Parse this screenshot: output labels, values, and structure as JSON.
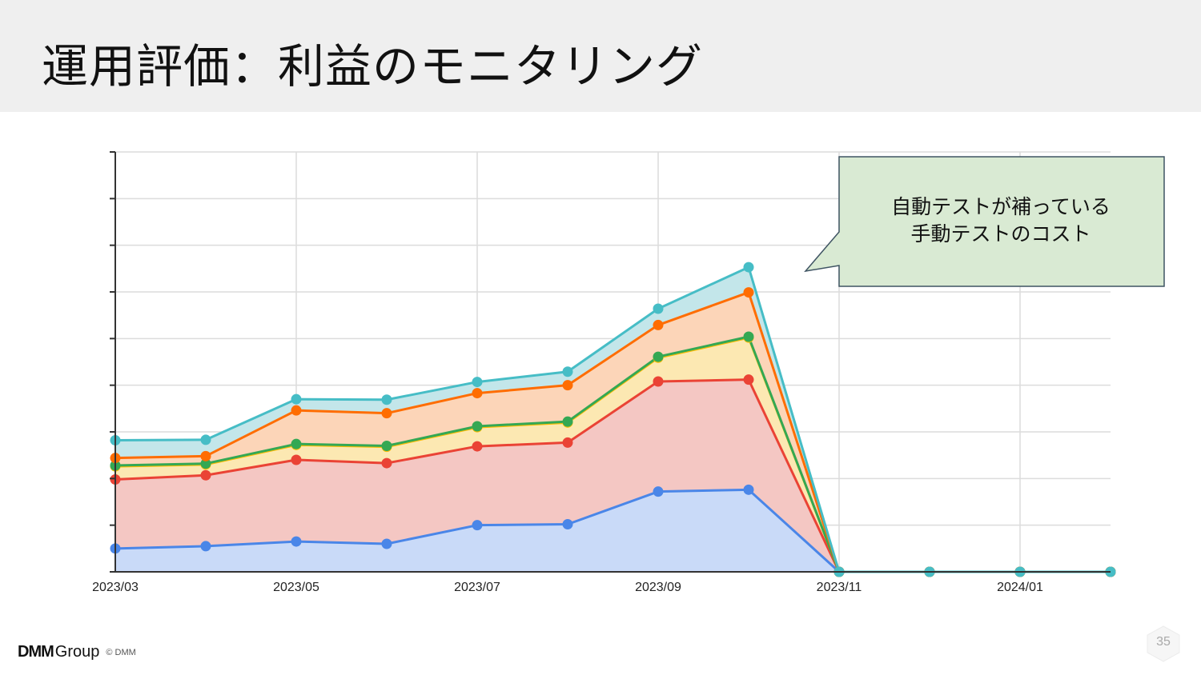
{
  "slide": {
    "title": "運用評価：利益のモニタリング",
    "page_number": "35"
  },
  "callout": {
    "line1": "自動テストが補っている",
    "line2": "手動テストのコスト",
    "fill": "#d9ead3",
    "stroke": "#3f5463"
  },
  "footer": {
    "logo_dmm": "DMM",
    "logo_group": "Group",
    "copyright": "© DMM"
  },
  "chart_data": {
    "type": "area",
    "stacked": true,
    "x": [
      "2023/03",
      "2023/04",
      "2023/05",
      "2023/06",
      "2023/07",
      "2023/08",
      "2023/09",
      "2023/10",
      "2023/11",
      "2023/12",
      "2024/01",
      "2024/02"
    ],
    "x_tick_labels": [
      "2023/03",
      "2023/05",
      "2023/07",
      "2023/09",
      "2023/11",
      "2024/01"
    ],
    "ylim": [
      0,
      9
    ],
    "y_tick_count": 9,
    "grid": true,
    "legend": "none",
    "series": [
      {
        "color": "#4a86e8",
        "fill": "#c9daf8",
        "values": [
          0.5,
          0.55,
          0.65,
          0.6,
          1.0,
          1.02,
          1.72,
          1.76,
          0,
          0,
          0,
          0
        ]
      },
      {
        "color": "#ea4335",
        "fill": "#f4c7c3",
        "values": [
          1.48,
          1.52,
          1.75,
          1.73,
          1.69,
          1.75,
          2.36,
          2.36,
          0,
          0,
          0,
          0
        ]
      },
      {
        "color": "#fbbc04",
        "fill": "#fce8b2",
        "values": [
          0.28,
          0.23,
          0.32,
          0.35,
          0.41,
          0.43,
          0.51,
          0.9,
          0,
          0,
          0,
          0
        ]
      },
      {
        "color": "#34a853",
        "fill": "#fce8b2",
        "values": [
          0.02,
          0.02,
          0.02,
          0.02,
          0.02,
          0.02,
          0.02,
          0.02,
          0,
          0,
          0,
          0
        ]
      },
      {
        "color": "#ff6d01",
        "fill": "#fcd5b8",
        "values": [
          0.16,
          0.16,
          0.72,
          0.7,
          0.71,
          0.78,
          0.68,
          0.95,
          0,
          0,
          0,
          0
        ]
      },
      {
        "color": "#46bdc6",
        "fill": "#c3e6ea",
        "values": [
          0.38,
          0.35,
          0.24,
          0.29,
          0.24,
          0.29,
          0.35,
          0.54,
          0,
          0,
          0,
          0
        ]
      }
    ]
  }
}
